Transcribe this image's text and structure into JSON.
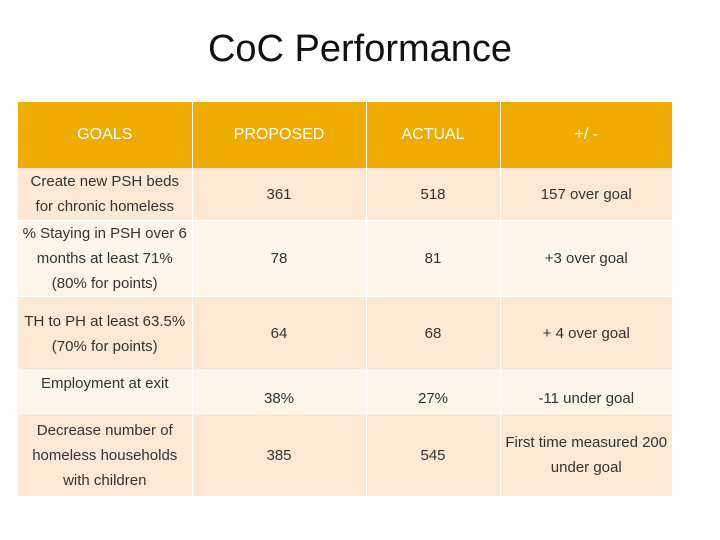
{
  "title": "CoC Performance",
  "table": {
    "headers": [
      "GOALS",
      "PROPOSED",
      "ACTUAL",
      "+/ -"
    ],
    "rows": [
      {
        "goal": "Create new PSH beds for chronic homeless",
        "proposed": "361",
        "actual": "518",
        "diff": "157 over goal"
      },
      {
        "goal": "% Staying in PSH over 6 months at least 71% (80% for points)",
        "proposed": "78",
        "actual": "81",
        "diff": "+3 over goal"
      },
      {
        "goal": "TH to PH at least 63.5% (70% for points)",
        "proposed": "64",
        "actual": "68",
        "diff": "+ 4 over goal"
      },
      {
        "goal": "Employment at exit",
        "proposed": "38%",
        "actual": "27%",
        "diff": "-11 under goal"
      },
      {
        "goal": "Decrease number of homeless households with children",
        "proposed": "385",
        "actual": "545",
        "diff": "First time measured 200 under goal"
      }
    ]
  },
  "colors": {
    "header_bg": "#efac00",
    "row_odd_bg": "#fbe9d5",
    "row_even_bg": "#fdf4ea"
  }
}
